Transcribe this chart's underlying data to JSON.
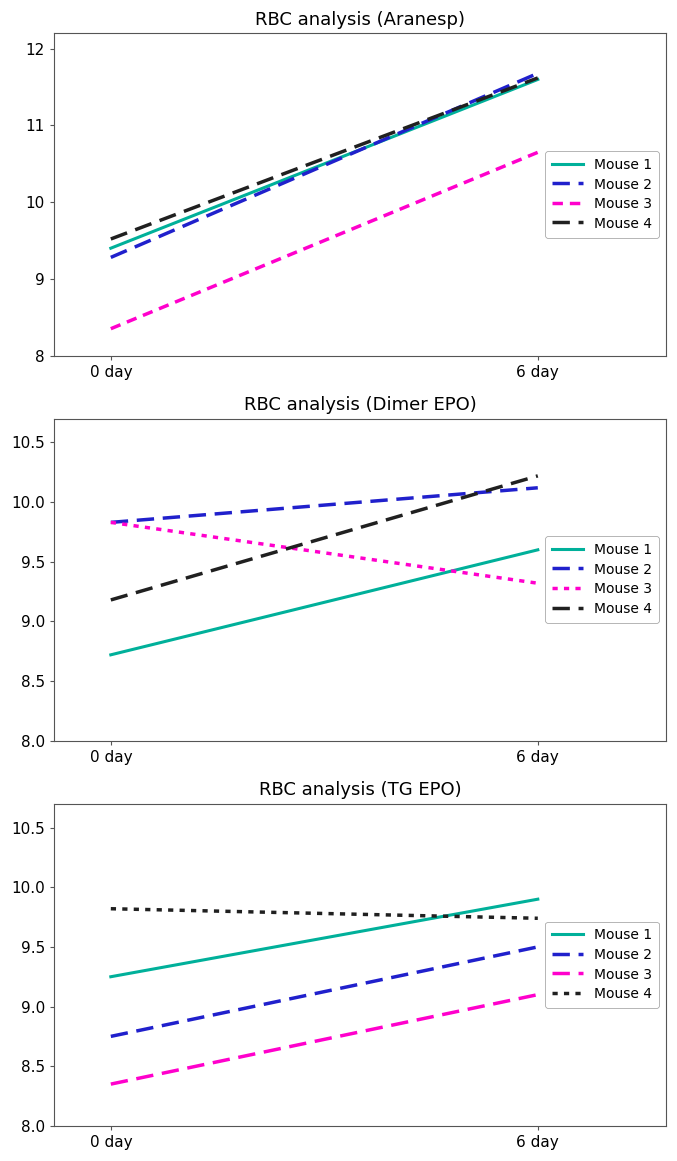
{
  "charts": [
    {
      "title": "RBC analysis (Aranesp)",
      "ylim": [
        8,
        12.2
      ],
      "yticks": [
        8,
        9,
        10,
        11,
        12
      ],
      "series": [
        {
          "label": "Mouse 1",
          "x": [
            0,
            6
          ],
          "y": [
            9.4,
            11.6
          ],
          "color": "#00b09a",
          "linestyle": "solid",
          "linewidth": 2.2
        },
        {
          "label": "Mouse 2",
          "x": [
            0,
            6
          ],
          "y": [
            9.28,
            11.68
          ],
          "color": "#2020cc",
          "linestyle": "dashed",
          "linewidth": 2.5
        },
        {
          "label": "Mouse 3",
          "x": [
            0,
            6
          ],
          "y": [
            8.35,
            10.65
          ],
          "color": "#ff00cc",
          "linestyle": "dashdot_custom",
          "linewidth": 2.5
        },
        {
          "label": "Mouse 4",
          "x": [
            0,
            6
          ],
          "y": [
            9.52,
            11.62
          ],
          "color": "#202020",
          "linestyle": "dashed",
          "linewidth": 2.5
        }
      ]
    },
    {
      "title": "RBC analysis (Dimer EPO)",
      "ylim": [
        8,
        10.7
      ],
      "yticks": [
        8,
        8.5,
        9,
        9.5,
        10,
        10.5
      ],
      "series": [
        {
          "label": "Mouse 1",
          "x": [
            0,
            6
          ],
          "y": [
            8.72,
            9.6
          ],
          "color": "#00b09a",
          "linestyle": "solid",
          "linewidth": 2.2
        },
        {
          "label": "Mouse 2",
          "x": [
            0,
            6
          ],
          "y": [
            9.83,
            10.12
          ],
          "color": "#2020cc",
          "linestyle": "dashed",
          "linewidth": 2.5
        },
        {
          "label": "Mouse 3",
          "x": [
            0,
            6
          ],
          "y": [
            9.83,
            9.32
          ],
          "color": "#ff00cc",
          "linestyle": "dotted",
          "linewidth": 2.5
        },
        {
          "label": "Mouse 4",
          "x": [
            0,
            6
          ],
          "y": [
            9.18,
            10.22
          ],
          "color": "#202020",
          "linestyle": "dashed",
          "linewidth": 2.5
        }
      ]
    },
    {
      "title": "RBC analysis (TG EPO)",
      "ylim": [
        8,
        10.7
      ],
      "yticks": [
        8,
        8.5,
        9,
        9.5,
        10,
        10.5
      ],
      "series": [
        {
          "label": "Mouse 1",
          "x": [
            0,
            6
          ],
          "y": [
            9.25,
            9.9
          ],
          "color": "#00b09a",
          "linestyle": "solid",
          "linewidth": 2.2
        },
        {
          "label": "Mouse 2",
          "x": [
            0,
            6
          ],
          "y": [
            8.75,
            9.5
          ],
          "color": "#2020cc",
          "linestyle": "dashed",
          "linewidth": 2.5
        },
        {
          "label": "Mouse 3",
          "x": [
            0,
            6
          ],
          "y": [
            8.35,
            9.1
          ],
          "color": "#ff00cc",
          "linestyle": "dashed",
          "linewidth": 2.5
        },
        {
          "label": "Mouse 4",
          "x": [
            0,
            6
          ],
          "y": [
            9.82,
            9.74
          ],
          "color": "#202020",
          "linestyle": "dotted",
          "linewidth": 2.5
        }
      ]
    }
  ],
  "xtick_positions": [
    0,
    6
  ],
  "xticklabels": [
    "0 day",
    "6 day"
  ],
  "xlim": [
    -0.8,
    7.8
  ],
  "background_color": "#ffffff",
  "legend_loc": "center right",
  "title_fontsize": 13,
  "tick_fontsize": 11,
  "legend_fontsize": 10
}
